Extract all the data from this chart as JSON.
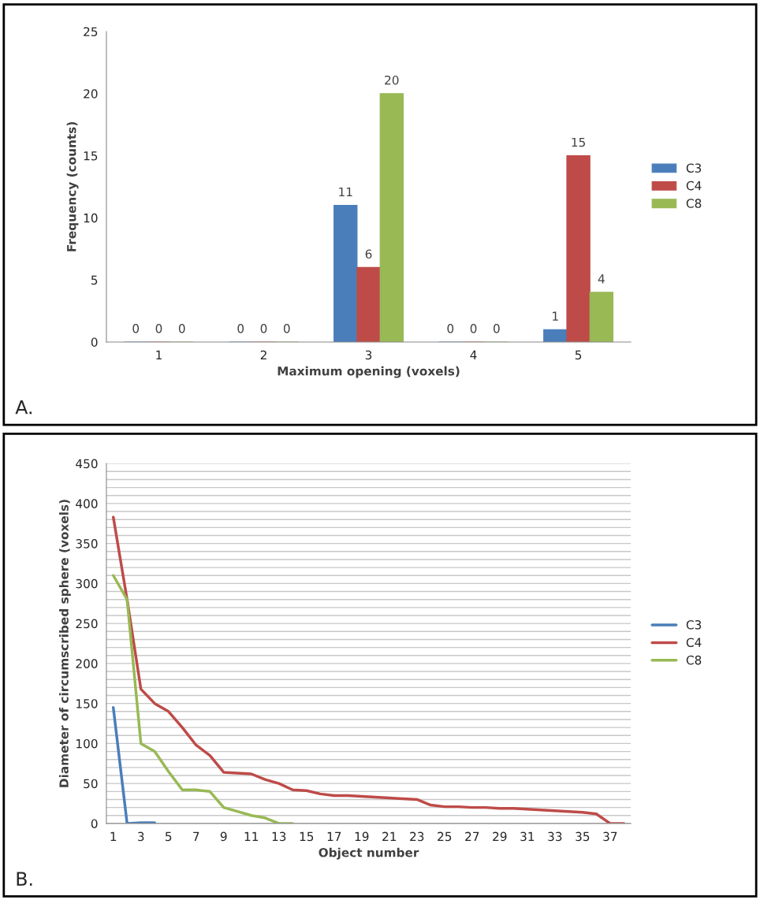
{
  "chart_data": [
    {
      "type": "bar",
      "xlabel": "Maximum opening (voxels)",
      "ylabel": "Frequency (counts)",
      "categories": [
        "1",
        "2",
        "3",
        "4",
        "5"
      ],
      "ylim": [
        0,
        25
      ],
      "yticks": [
        0,
        5,
        10,
        15,
        20,
        25
      ],
      "data_labels": true,
      "grid": false,
      "legend": "right",
      "annotations": [
        "A."
      ],
      "series": [
        {
          "name": "C3",
          "color": "#4a7ebb",
          "values": [
            0,
            0,
            11,
            0,
            1
          ]
        },
        {
          "name": "C4",
          "color": "#be4b48",
          "values": [
            0,
            0,
            6,
            0,
            15
          ]
        },
        {
          "name": "C8",
          "color": "#98b954",
          "values": [
            0,
            0,
            20,
            0,
            4
          ]
        }
      ]
    },
    {
      "type": "line",
      "xlabel": "Object number",
      "ylabel": "Diameter of circumscribed sphere (voxels)",
      "categories": [
        "1",
        null,
        "3",
        null,
        "5",
        null,
        "7",
        null,
        "9",
        null,
        "11",
        null,
        "13",
        null,
        "15",
        null,
        "17",
        null,
        "19",
        null,
        "21",
        null,
        "23",
        null,
        "25",
        null,
        "27",
        null,
        "29",
        null,
        "31",
        null,
        "33",
        null,
        "35",
        null,
        "37",
        null
      ],
      "ylim": [
        0,
        450
      ],
      "yticks": [
        0,
        {
          "value": 10,
          "label": null
        },
        {
          "value": 20,
          "label": null
        },
        {
          "value": 30,
          "label": null
        },
        {
          "value": 40,
          "label": null
        },
        50,
        {
          "value": 60,
          "label": null
        },
        {
          "value": 70,
          "label": null
        },
        {
          "value": 80,
          "label": null
        },
        {
          "value": 90,
          "label": null
        },
        100,
        {
          "value": 110,
          "label": null
        },
        {
          "value": 120,
          "label": null
        },
        {
          "value": 130,
          "label": null
        },
        {
          "value": 140,
          "label": null
        },
        150,
        {
          "value": 160,
          "label": null
        },
        {
          "value": 170,
          "label": null
        },
        {
          "value": 180,
          "label": null
        },
        {
          "value": 190,
          "label": null
        },
        200,
        {
          "value": 210,
          "label": null
        },
        {
          "value": 220,
          "label": null
        },
        {
          "value": 230,
          "label": null
        },
        {
          "value": 240,
          "label": null
        },
        250,
        {
          "value": 260,
          "label": null
        },
        {
          "value": 270,
          "label": null
        },
        {
          "value": 280,
          "label": null
        },
        {
          "value": 290,
          "label": null
        },
        300,
        {
          "value": 310,
          "label": null
        },
        {
          "value": 320,
          "label": null
        },
        {
          "value": 330,
          "label": null
        },
        {
          "value": 340,
          "label": null
        },
        350,
        {
          "value": 360,
          "label": null
        },
        {
          "value": 370,
          "label": null
        },
        {
          "value": 380,
          "label": null
        },
        {
          "value": 390,
          "label": null
        },
        400,
        {
          "value": 410,
          "label": null
        },
        {
          "value": 420,
          "label": null
        },
        {
          "value": 430,
          "label": null
        },
        {
          "value": 440,
          "label": null
        },
        450
      ],
      "grid": "y",
      "legend": "right",
      "marker": "none",
      "line_style": "solid",
      "annotations": [
        "B."
      ],
      "series": [
        {
          "name": "C3",
          "color": "#4a7ebb",
          "values": [
            145,
            0,
            1,
            1,
            null,
            null,
            null,
            null,
            null,
            null,
            null,
            null,
            null,
            null,
            null,
            null,
            null,
            null,
            null,
            null,
            null,
            null,
            null,
            null,
            null,
            null,
            null,
            null,
            null,
            null,
            null,
            null,
            null,
            null,
            null,
            null,
            null,
            null
          ]
        },
        {
          "name": "C4",
          "color": "#be4b48",
          "values": [
            383,
            280,
            168,
            150,
            140,
            120,
            98,
            85,
            64,
            63,
            62,
            55,
            50,
            42,
            41,
            37,
            35,
            35,
            34,
            33,
            32,
            31,
            30,
            23,
            21,
            21,
            20,
            20,
            19,
            19,
            18,
            17,
            16,
            15,
            14,
            12,
            0,
            0
          ]
        },
        {
          "name": "C8",
          "color": "#98b954",
          "values": [
            310,
            280,
            100,
            90,
            65,
            42,
            42,
            40,
            20,
            15,
            10,
            7,
            0,
            0,
            null,
            null,
            null,
            null,
            null,
            null,
            null,
            null,
            null,
            null,
            null,
            null,
            null,
            null,
            null,
            null,
            null,
            null,
            null,
            null,
            null,
            null,
            null,
            null
          ]
        }
      ]
    }
  ]
}
